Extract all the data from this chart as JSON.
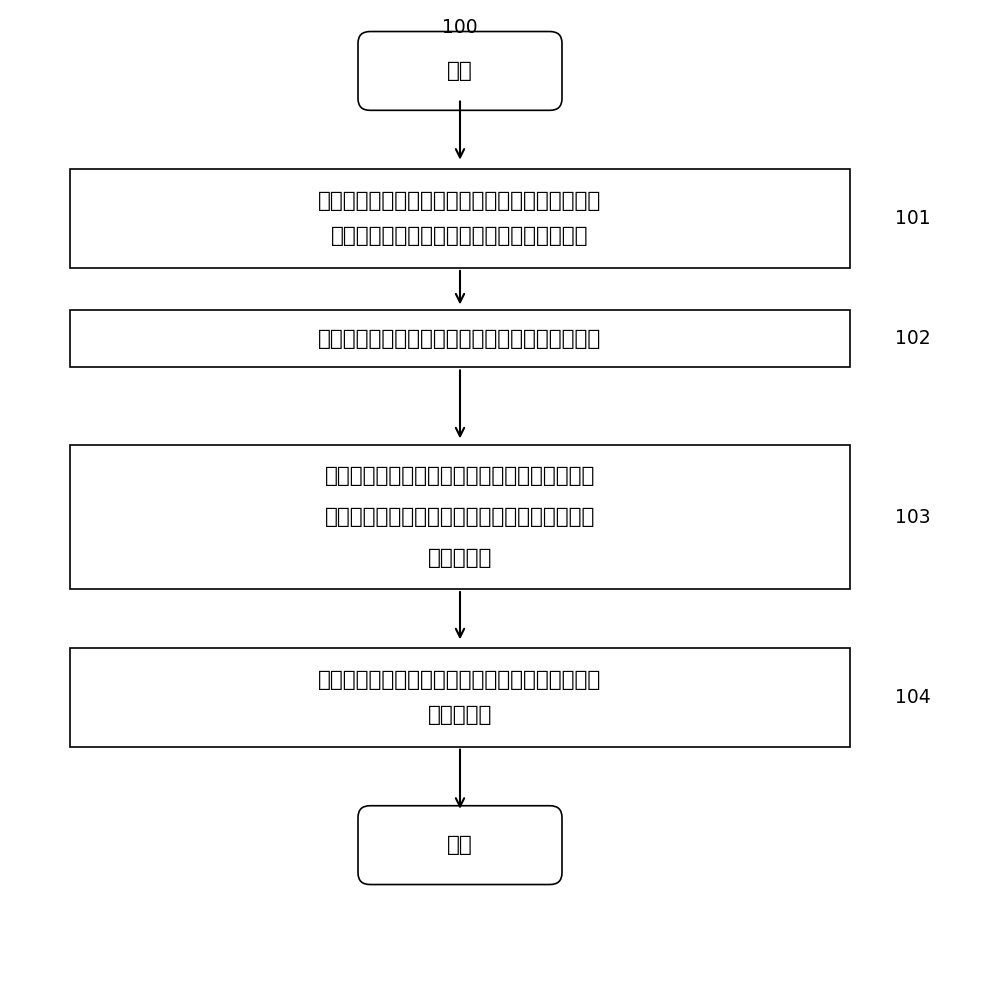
{
  "title_label": "100",
  "start_label": "开始",
  "end_label": "结束",
  "box1_line1": "建立确定换流阀整体状态的模型，定义换流阀整体",
  "box1_line2": "状态的等级，确定所述模型的因素层和指标层",
  "box2_text": "应用层次分析法确定指标层中各项具体指标的权重",
  "box3_line1": "应用模糊综合评价法综合与因素层中各个因素相",
  "box3_line2": "对应的各项具体指标的状态以确定因素层中各个",
  "box3_line3": "因素的状态",
  "box4_line1": "应用证据推理法整合各个因素的状态以确定换流阀",
  "box4_line2": "的整体状态",
  "label1": "101",
  "label2": "102",
  "label3": "103",
  "label4": "104",
  "bg_color": "#ffffff",
  "box_color": "#ffffff",
  "box_edge_color": "#000000",
  "text_color": "#000000",
  "arrow_color": "#000000"
}
